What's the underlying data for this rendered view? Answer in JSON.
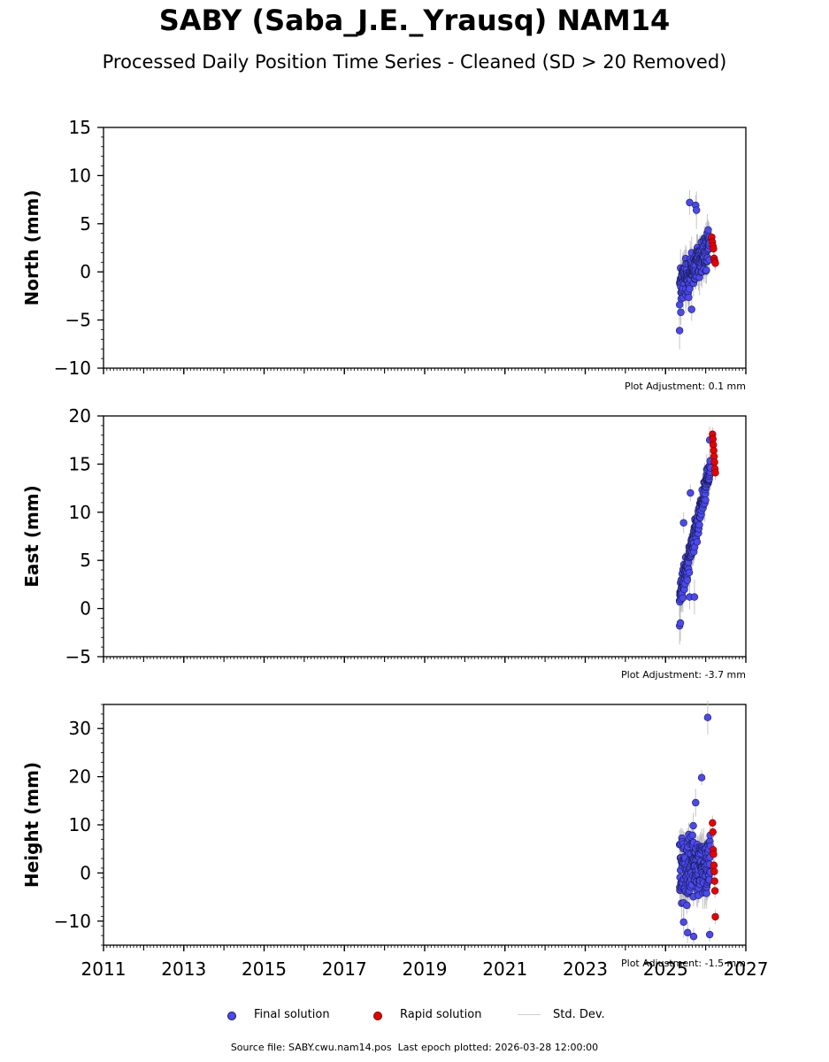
{
  "title": "SABY (Saba_J.E._Yrausq) NAM14",
  "subtitle": "Processed Daily Position Time Series - Cleaned (SD > 20 Removed)",
  "legend": {
    "final_label": "Final solution",
    "rapid_label": "Rapid solution",
    "std_label": "Std. Dev."
  },
  "footer": {
    "source_file": "Source file: SABY.cwu.nam14.pos",
    "last_epoch": "Last epoch plotted: 2026-03-28 12:00:00"
  },
  "colors": {
    "final": "#4a4af0",
    "final_edge": "#1a1a50",
    "rapid": "#e80000",
    "std_dev": "#b8b8b8",
    "axes": "#000000"
  },
  "chart_data": [
    {
      "type": "scatter",
      "name": "north",
      "ylabel": "North (mm)",
      "xlim": [
        2011,
        2027
      ],
      "ylim": [
        -10,
        15
      ],
      "yticks": [
        -10,
        -5,
        0,
        5,
        10,
        15
      ],
      "xticks": [
        2011,
        2013,
        2015,
        2017,
        2019,
        2021,
        2023,
        2025,
        2027
      ],
      "show_x_tick_labels": false,
      "grid": false,
      "adjustment": "Plot Adjustment: 0.1 mm",
      "series": [
        {
          "name": "Final solution",
          "x_start": 2025.35,
          "x_end": 2026.1,
          "y_start": -1.5,
          "y_end": 2.5,
          "scatter": 1.6,
          "count": 190,
          "outliers": [
            [
              2025.35,
              -6.1
            ],
            [
              2025.6,
              7.2
            ],
            [
              2025.75,
              6.9
            ],
            [
              2025.77,
              6.4
            ],
            [
              2025.38,
              -4.2
            ],
            [
              2025.65,
              -3.9
            ]
          ]
        },
        {
          "name": "Rapid solution",
          "x_start": 2026.15,
          "x_end": 2026.24,
          "values": [
            3.6,
            3.1,
            2.7,
            2.4,
            1.4,
            1.1,
            0.9
          ]
        }
      ]
    },
    {
      "type": "scatter",
      "name": "east",
      "ylabel": "East (mm)",
      "xlim": [
        2011,
        2027
      ],
      "ylim": [
        -5,
        20
      ],
      "yticks": [
        -5,
        0,
        5,
        10,
        15,
        20
      ],
      "xticks": [
        2011,
        2013,
        2015,
        2017,
        2019,
        2021,
        2023,
        2025,
        2027
      ],
      "show_x_tick_labels": false,
      "grid": false,
      "adjustment": "Plot Adjustment: -3.7 mm",
      "series": [
        {
          "name": "Final solution",
          "x_start": 2025.35,
          "x_end": 2026.12,
          "y_start": 1.0,
          "y_end": 14.8,
          "scatter": 1.1,
          "count": 190,
          "outliers": [
            [
              2025.35,
              -1.8
            ],
            [
              2025.37,
              -1.5
            ],
            [
              2025.62,
              12.0
            ],
            [
              2025.6,
              1.2
            ],
            [
              2025.72,
              1.2
            ],
            [
              2025.45,
              8.9
            ],
            [
              2026.1,
              17.5
            ]
          ]
        },
        {
          "name": "Rapid solution",
          "x_start": 2026.17,
          "x_end": 2026.24,
          "values": [
            18.1,
            17.6,
            17.0,
            16.4,
            15.8,
            15.2,
            14.5,
            14.1
          ]
        }
      ]
    },
    {
      "type": "scatter",
      "name": "height",
      "ylabel": "Height (mm)",
      "xlim": [
        2011,
        2027
      ],
      "ylim": [
        -15,
        35
      ],
      "yticks": [
        -10,
        0,
        10,
        20,
        30
      ],
      "xticks": [
        2011,
        2013,
        2015,
        2017,
        2019,
        2021,
        2023,
        2025,
        2027
      ],
      "xtick_labels": [
        "2011",
        "2013",
        "2015",
        "2017",
        "2019",
        "2021",
        "2023",
        "2025",
        "2027"
      ],
      "show_x_tick_labels": true,
      "grid": false,
      "adjustment": "Plot Adjustment: -1.5 mm",
      "series": [
        {
          "name": "Final solution",
          "x_start": 2025.35,
          "x_end": 2026.12,
          "y_start": 1.5,
          "y_end": 1.5,
          "scatter": 5.0,
          "count": 200,
          "outliers": [
            [
              2026.05,
              32.3
            ],
            [
              2025.9,
              19.8
            ],
            [
              2025.75,
              14.6
            ],
            [
              2025.7,
              -13.2
            ],
            [
              2025.55,
              -12.4
            ],
            [
              2026.1,
              -12.8
            ],
            [
              2025.45,
              -10.2
            ]
          ]
        },
        {
          "name": "Rapid solution",
          "x_start": 2026.17,
          "x_end": 2026.24,
          "values": [
            10.4,
            8.5,
            4.8,
            3.9,
            1.6,
            0.3,
            -1.7,
            -3.7,
            -9.1
          ]
        }
      ]
    }
  ]
}
